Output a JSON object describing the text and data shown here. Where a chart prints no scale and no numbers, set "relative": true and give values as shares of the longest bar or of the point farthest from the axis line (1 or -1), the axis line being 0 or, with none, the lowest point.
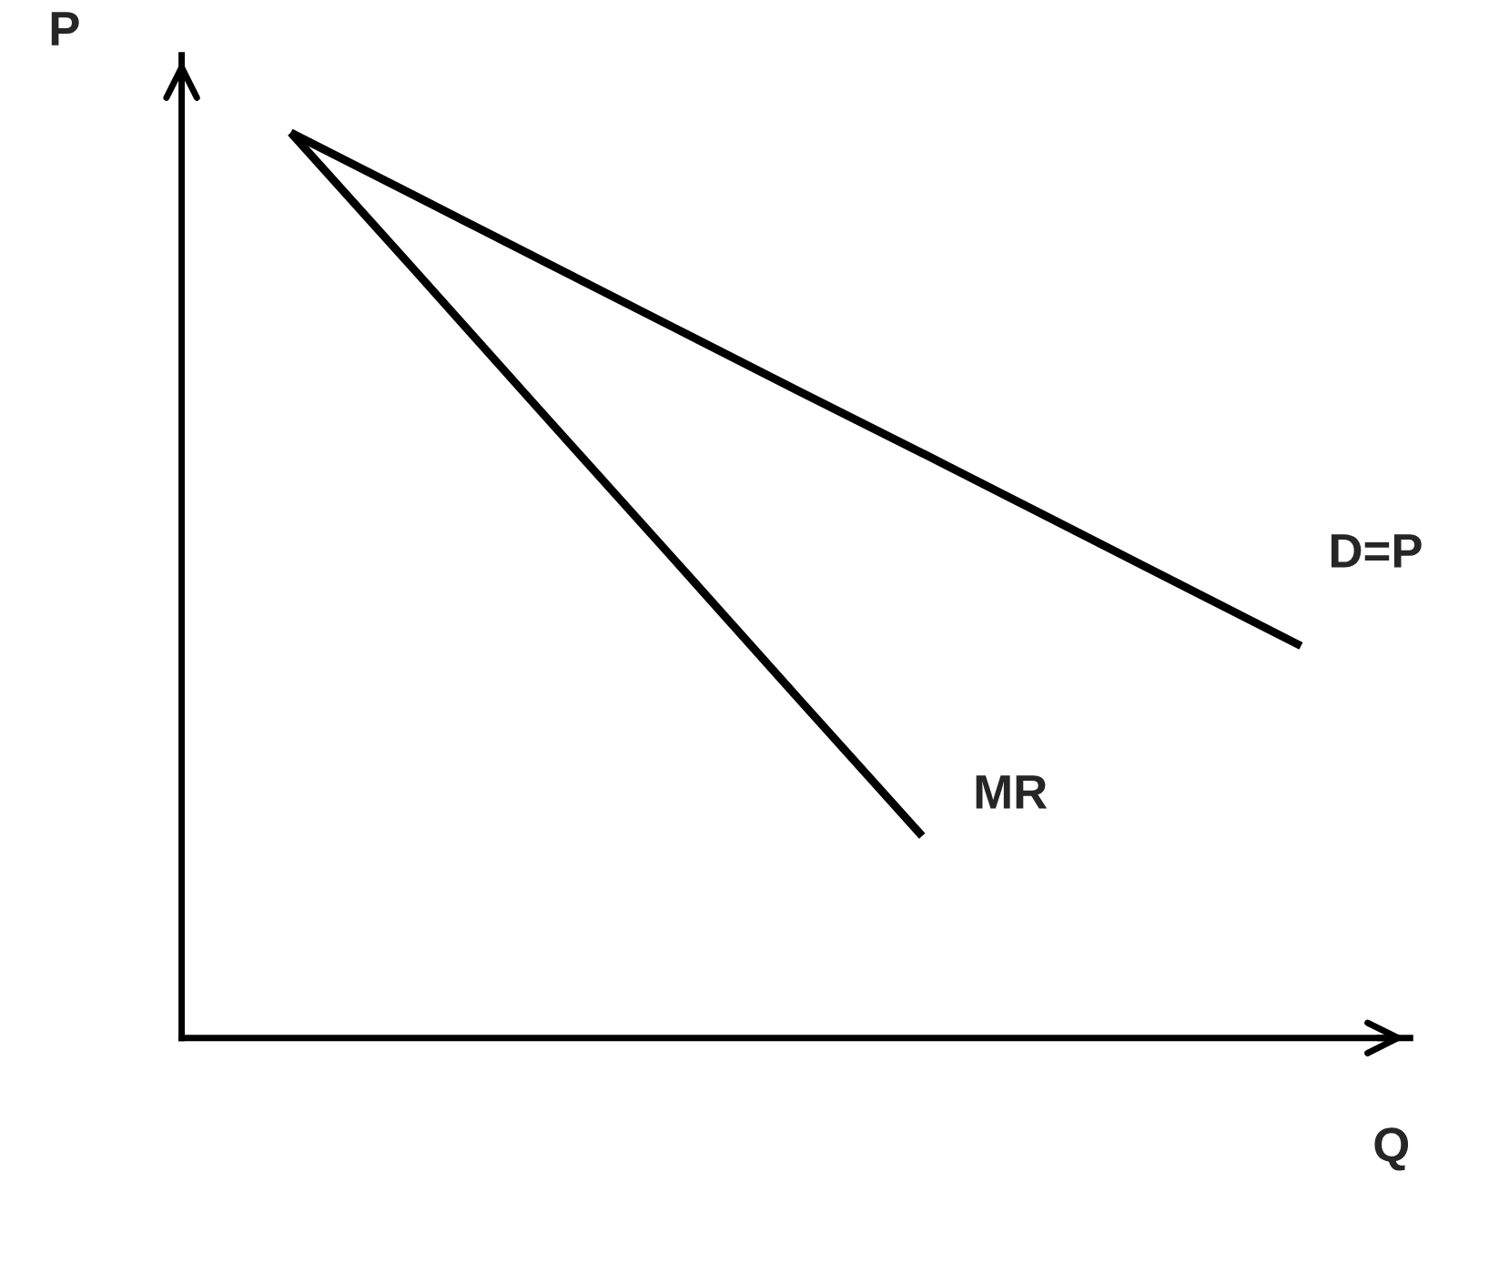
{
  "chart_data": {
    "type": "line",
    "relative": true,
    "xlabel": "Q",
    "ylabel": "P",
    "categories": [
      null,
      null,
      null,
      null,
      null,
      null,
      null,
      null,
      null
    ],
    "tick_labels": false,
    "legend": false,
    "marker": "none",
    "line_style": "solid",
    "series": [
      {
        "name": "D=P",
        "color": "#000000",
        "values": [
          1,
          0.929,
          0.858,
          0.787,
          0.716,
          0.646,
          0.575,
          0.504,
          0.433
        ]
      },
      {
        "name": "MR",
        "color": "#000000",
        "values": [
          1,
          0.845,
          0.689,
          0.534,
          0.378,
          0.223,
          null,
          null,
          null
        ]
      }
    ]
  }
}
